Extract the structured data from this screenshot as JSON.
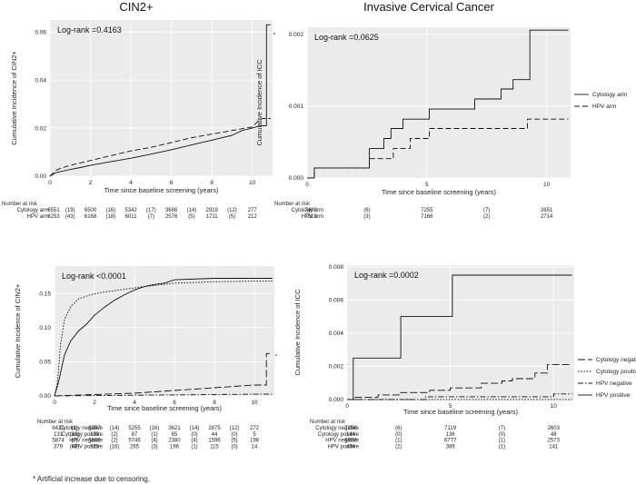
{
  "note": "* Artificial increase due to censoring.",
  "chart_data": [
    {
      "type": "line",
      "id": "a",
      "title": "CIN2+",
      "xlabel": "Time since baseline screening (years)",
      "ylabel": "Cumulative Incidence of CIN2+",
      "xlim": [
        0,
        11
      ],
      "ylim": [
        0,
        0.065
      ],
      "xticks": [
        "0",
        "2",
        "4",
        "6",
        "8",
        "10"
      ],
      "yticks": [
        "0.00",
        "0.02",
        "0.04",
        "0.06"
      ],
      "xtickvals": [
        0,
        2,
        4,
        6,
        8,
        10
      ],
      "ytickvals": [
        0,
        0.02,
        0.04,
        0.06
      ],
      "logrank": "Log-rank =0.4163",
      "annotation": "*",
      "annotation_point": [
        10.9,
        0.058
      ],
      "series": [
        {
          "name": "Cytology arm",
          "dash": "solid",
          "x": [
            0,
            0.3,
            0.6,
            1,
            1.5,
            2,
            3,
            4,
            5,
            6,
            7,
            8,
            9,
            9.5,
            10,
            10.4,
            10.7,
            10.7,
            10.9
          ],
          "y": [
            0,
            0.0015,
            0.002,
            0.0028,
            0.0036,
            0.0045,
            0.006,
            0.0075,
            0.0092,
            0.011,
            0.013,
            0.015,
            0.017,
            0.019,
            0.02,
            0.021,
            0.021,
            0.063,
            0.063
          ]
        },
        {
          "name": "HPV arm",
          "dash": "dashed",
          "x": [
            0,
            0.3,
            0.6,
            1,
            2,
            3,
            4,
            5,
            6,
            7,
            8,
            9,
            10,
            10.3,
            10.5,
            10.9
          ],
          "y": [
            0,
            0.0025,
            0.0035,
            0.0045,
            0.0065,
            0.0085,
            0.0105,
            0.012,
            0.014,
            0.016,
            0.0175,
            0.019,
            0.0205,
            0.023,
            0.024,
            0.024
          ]
        }
      ],
      "legend": [],
      "risk_table": {
        "header": "Number at risk",
        "rows": [
          {
            "label": "Cytology arm",
            "cells": [
              "6551",
              "(19)",
              "6500",
              "(16)",
              "5342",
              "(17)",
              "3686",
              "(14)",
              "2919",
              "(12)",
              "277"
            ]
          },
          {
            "label": "HPV arm",
            "cells": [
              "6253",
              "(43)",
              "6168",
              "(18)",
              "6011",
              "(7)",
              "2576",
              "(5)",
              "1711",
              "(5)",
              "212"
            ]
          }
        ]
      }
    },
    {
      "type": "line",
      "id": "b",
      "title": "Invasive Cervical Cancer",
      "xlabel": "Time since baseline screening (years)",
      "ylabel": "Cumulative Incidence of ICC",
      "xlim": [
        0,
        11
      ],
      "ylim": [
        0,
        0.0021
      ],
      "xticks": [
        "0",
        "5",
        "10"
      ],
      "yticks": [
        "0.000",
        "0.001",
        "0.002"
      ],
      "xtickvals": [
        0,
        5,
        10
      ],
      "ytickvals": [
        0,
        0.001,
        0.002
      ],
      "logrank": "Log-rank =0.0625",
      "series": [
        {
          "name": "Cytology arm",
          "dash": "solid",
          "x": [
            0,
            0.3,
            0.3,
            2.6,
            2.6,
            3.2,
            3.2,
            3.5,
            3.5,
            4.0,
            4.0,
            5.1,
            5.1,
            7.0,
            7.0,
            8.1,
            8.1,
            8.6,
            8.6,
            9.3,
            9.3,
            10.9
          ],
          "y": [
            0,
            0,
            0.00014,
            0.00014,
            0.00041,
            0.00041,
            0.00055,
            0.00055,
            0.00069,
            0.00069,
            0.00082,
            0.00082,
            0.00096,
            0.00096,
            0.0011,
            0.0011,
            0.00124,
            0.00124,
            0.00137,
            0.00137,
            0.00206,
            0.00206
          ]
        },
        {
          "name": "HPV arm",
          "dash": "dashed",
          "x": [
            0,
            0.3,
            0.3,
            2.6,
            2.6,
            3.6,
            3.6,
            4.3,
            4.3,
            5.1,
            5.1,
            9.2,
            9.2,
            10.9
          ],
          "y": [
            0,
            0,
            0.00014,
            0.00014,
            0.00027,
            0.00027,
            0.00041,
            0.00041,
            0.00055,
            0.00055,
            0.00069,
            0.00069,
            0.00082,
            0.00082
          ]
        }
      ],
      "legend": [
        {
          "label": "Cytology arm",
          "dash": "solid"
        },
        {
          "label": "HPV arm",
          "dash": "dashed"
        }
      ],
      "risk_table": {
        "header": "Number at risk",
        "rows": [
          {
            "label": "Cytology arm",
            "cells": [
              "7400",
              "(6)",
              "7255",
              "(7)",
              "2651"
            ]
          },
          {
            "label": "HPV arm",
            "cells": [
              "7313",
              "(3)",
              "7166",
              "(2)",
              "2714"
            ]
          }
        ]
      }
    },
    {
      "type": "line",
      "id": "c",
      "title": "",
      "xlabel": "Time since baseline screening (years)",
      "ylabel": "Cumulative Incidence of CIN2+",
      "xlim": [
        0,
        11
      ],
      "ylim": [
        0,
        0.19
      ],
      "xticks": [
        "0",
        "2",
        "4",
        "6",
        "8",
        "10"
      ],
      "yticks": [
        "0.00",
        "0.05",
        "0.10",
        "0.15"
      ],
      "xtickvals": [
        0,
        2,
        4,
        6,
        8,
        10
      ],
      "ytickvals": [
        0,
        0.05,
        0.1,
        0.15
      ],
      "logrank": "Log-rank <0.0001",
      "annotation": "*",
      "annotation_point": [
        10.9,
        0.055
      ],
      "series": [
        {
          "name": "Cytology negative",
          "dash": "longdash",
          "x": [
            0,
            1,
            2,
            3,
            4,
            5,
            6,
            7,
            8,
            9,
            9.5,
            10,
            10.4,
            10.6,
            10.6,
            10.9
          ],
          "y": [
            0,
            0.001,
            0.002,
            0.003,
            0.004,
            0.006,
            0.008,
            0.01,
            0.012,
            0.014,
            0.015,
            0.016,
            0.016,
            0.016,
            0.062,
            0.062
          ]
        },
        {
          "name": "Cytology positive",
          "dash": "dotted",
          "x": [
            0,
            0.15,
            0.3,
            0.5,
            0.8,
            1.2,
            1.8,
            2.5,
            3.5,
            4.5,
            6,
            8,
            10,
            10.9
          ],
          "y": [
            0,
            0.02,
            0.075,
            0.112,
            0.13,
            0.142,
            0.148,
            0.152,
            0.156,
            0.16,
            0.165,
            0.167,
            0.168,
            0.168
          ]
        },
        {
          "name": "HPV negative",
          "dash": "dashdot",
          "x": [
            0,
            2,
            4,
            6,
            8,
            10,
            10.9
          ],
          "y": [
            0,
            0.0005,
            0.001,
            0.0015,
            0.002,
            0.0025,
            0.0025
          ]
        },
        {
          "name": "HPV positive",
          "dash": "solid",
          "x": [
            0,
            0.2,
            0.5,
            0.8,
            1.2,
            1.6,
            2,
            2.5,
            3,
            3.5,
            4,
            4.5,
            5,
            5.5,
            6,
            8,
            10,
            10.9
          ],
          "y": [
            0,
            0.02,
            0.06,
            0.08,
            0.095,
            0.105,
            0.118,
            0.13,
            0.14,
            0.148,
            0.155,
            0.16,
            0.163,
            0.165,
            0.17,
            0.172,
            0.172,
            0.172
          ]
        }
      ],
      "legend": [],
      "risk_table": {
        "header": "Number at risk",
        "rows": [
          {
            "label": "Cytology negative",
            "cells": [
              "6420",
              "(1)",
              "6397",
              "(14)",
              "5255",
              "(16)",
              "3621",
              "(14)",
              "2875",
              "(12)",
              "272"
            ]
          },
          {
            "label": "Cytology positive",
            "cells": [
              "131",
              "(18)",
              "103",
              "(2)",
              "87",
              "(1)",
              "65",
              "(0)",
              "44",
              "(0)",
              "5"
            ]
          },
          {
            "label": "HPV negative",
            "cells": [
              "5874",
              "(0)",
              "5845",
              "(2)",
              "5746",
              "(4)",
              "2380",
              "(4)",
              "1596",
              "(5)",
              "198"
            ]
          },
          {
            "label": "HPV positive",
            "cells": [
              "379",
              "(43)",
              "323",
              "(16)",
              "265",
              "(3)",
              "196",
              "(1)",
              "115",
              "(0)",
              "14"
            ]
          }
        ]
      }
    },
    {
      "type": "line",
      "id": "d",
      "title": "",
      "xlabel": "Time since baseline screening (years)",
      "ylabel": "Cumulative Incidence of ICC",
      "xlim": [
        0,
        11
      ],
      "ylim": [
        0,
        0.0081
      ],
      "xticks": [
        "0",
        "5",
        "10"
      ],
      "yticks": [
        "0.000",
        "0.002",
        "0.004",
        "0.006",
        "0.008"
      ],
      "xtickvals": [
        0,
        5,
        10
      ],
      "ytickvals": [
        0,
        0.002,
        0.004,
        0.006,
        0.008
      ],
      "logrank": "Log-rank =0.0002",
      "series": [
        {
          "name": "Cytology negative",
          "dash": "longdash",
          "x": [
            0,
            0.3,
            0.3,
            1.5,
            1.5,
            2.6,
            2.6,
            4.0,
            4.0,
            5.0,
            5.0,
            6.5,
            6.5,
            7.5,
            7.5,
            8.0,
            8.0,
            9.1,
            9.1,
            9.7,
            9.7,
            10.9
          ],
          "y": [
            0,
            0,
            0.00014,
            0.00014,
            0.00028,
            0.00028,
            0.00042,
            0.00042,
            0.00056,
            0.00056,
            0.0007,
            0.0007,
            0.00098,
            0.00098,
            0.00112,
            0.00112,
            0.00126,
            0.00126,
            0.0016,
            0.0016,
            0.0021,
            0.0021
          ]
        },
        {
          "name": "Cytology positive",
          "dash": "dotted",
          "x": [
            0,
            10.9
          ],
          "y": [
            0,
            0
          ]
        },
        {
          "name": "HPV negative",
          "dash": "dashdot",
          "x": [
            0,
            3.8,
            3.8,
            10.0,
            10.0,
            10.9
          ],
          "y": [
            0,
            0,
            0.00017,
            0.00017,
            0.00034,
            0.00034
          ]
        },
        {
          "name": "HPV positive",
          "dash": "solid",
          "x": [
            0,
            0.3,
            0.3,
            2.6,
            2.6,
            5.1,
            5.1,
            10.9
          ],
          "y": [
            0,
            0,
            0.0025,
            0.0025,
            0.005,
            0.005,
            0.0075,
            0.0075
          ]
        }
      ],
      "legend": [
        {
          "label": "Cytology negative",
          "dash": "longdash"
        },
        {
          "label": "Cytology positive",
          "dash": "dotted"
        },
        {
          "label": "HPV negative",
          "dash": "dashdot"
        },
        {
          "label": "HPV positive",
          "dash": "solid"
        }
      ],
      "risk_table": {
        "header": "Number at risk",
        "rows": [
          {
            "label": "Cytology negative",
            "cells": [
              "7256",
              "(6)",
              "7119",
              "(7)",
              "2603"
            ]
          },
          {
            "label": "Cytology positive",
            "cells": [
              "144",
              "(0)",
              "136",
              "(0)",
              "48"
            ]
          },
          {
            "label": "HPV negative",
            "cells": [
              "6909",
              "(1)",
              "6777",
              "(1)",
              "2573"
            ]
          },
          {
            "label": "HPV positive",
            "cells": [
              "404",
              "(2)",
              "389",
              "(1)",
              "141"
            ]
          }
        ]
      }
    }
  ]
}
